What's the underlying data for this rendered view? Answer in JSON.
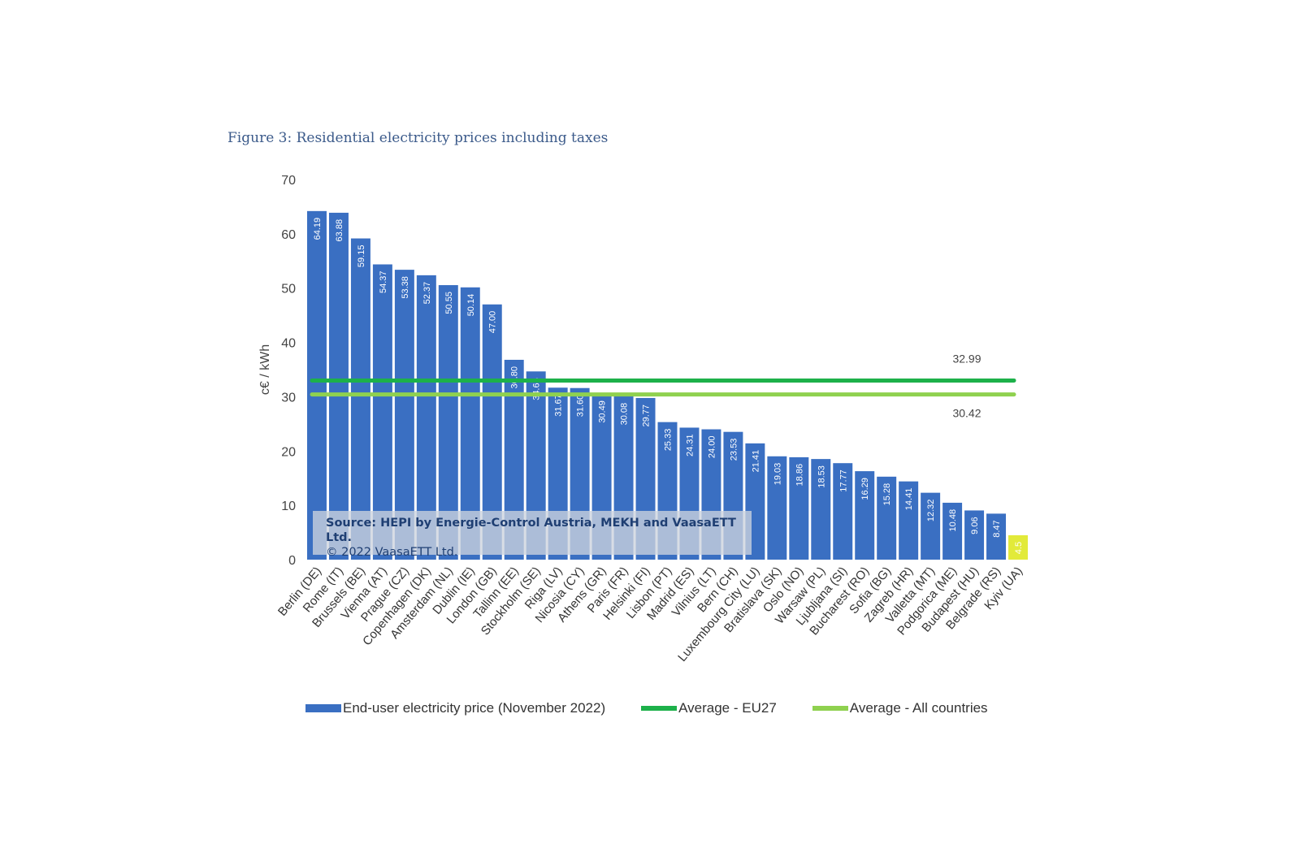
{
  "figure": {
    "caption": "Figure 3: Residential electricity prices including taxes"
  },
  "source_note": {
    "line1": "Source: HEPI by Energie-Control Austria, MEKH and VaasaETT Ltd.",
    "line2": "© 2022 VaasaETT Ltd."
  },
  "colors": {
    "bar": "#3a6fc2",
    "bar_highlight": "#e2ea3a",
    "avg_eu27": "#1db14a",
    "avg_all": "#8fd14f"
  },
  "chart_data": {
    "type": "bar",
    "title": "",
    "xlabel": "",
    "ylabel": "c€ / kWh",
    "ylim": [
      0,
      70
    ],
    "yticks": [
      0,
      10,
      20,
      30,
      40,
      50,
      60,
      70
    ],
    "grid": false,
    "legend_position": "bottom",
    "categories": [
      "Berlin (DE)",
      "Rome (IT)",
      "Brussels (BE)",
      "Vienna (AT)",
      "Prague (CZ)",
      "Copenhagen (DK)",
      "Amsterdam (NL)",
      "Dublin (IE)",
      "London (GB)",
      "Tallinn (EE)",
      "Stockholm (SE)",
      "Riga (LV)",
      "Nicosia (CY)",
      "Athens (GR)",
      "Paris (FR)",
      "Helsinki (FI)",
      "Lisbon (PT)",
      "Madrid (ES)",
      "Vilnius (LT)",
      "Bern (CH)",
      "Luxembourg City (LU)",
      "Bratislava (SK)",
      "Oslo (NO)",
      "Warsaw (PL)",
      "Ljubljana (SI)",
      "Bucharest (RO)",
      "Sofia (BG)",
      "Zagreb (HR)",
      "Valletta (MT)",
      "Podgorica (ME)",
      "Budapest (HU)",
      "Belgrade (RS)",
      "Kyiv (UA)"
    ],
    "series": [
      {
        "name": "End-user electricity price (November 2022)",
        "values": [
          64.19,
          63.88,
          59.15,
          54.37,
          53.38,
          52.37,
          50.55,
          50.14,
          47.0,
          36.8,
          34.66,
          31.67,
          31.6,
          30.49,
          30.08,
          29.77,
          25.33,
          24.31,
          24.0,
          23.53,
          21.41,
          19.03,
          18.86,
          18.53,
          17.77,
          16.29,
          15.28,
          14.41,
          12.32,
          10.48,
          9.06,
          8.47,
          4.5
        ],
        "value_labels": [
          "64.19",
          "63.88",
          "59.15",
          "54.37",
          "53.38",
          "52.37",
          "50.55",
          "50.14",
          "47.00",
          "36.80",
          "34.66",
          "31.67",
          "31.60",
          "30.49",
          "30.08",
          "29.77",
          "25.33",
          "24.31",
          "24.00",
          "23.53",
          "21.41",
          "19.03",
          "18.86",
          "18.53",
          "17.77",
          "16.29",
          "15.28",
          "14.41",
          "12.32",
          "10.48",
          "9.06",
          "8.47",
          "4.5"
        ]
      }
    ],
    "reference_lines": [
      {
        "name": "Average - EU27",
        "value": 32.99,
        "label": "32.99"
      },
      {
        "name": "Average - All countries",
        "value": 30.42,
        "label": "30.42"
      }
    ]
  }
}
